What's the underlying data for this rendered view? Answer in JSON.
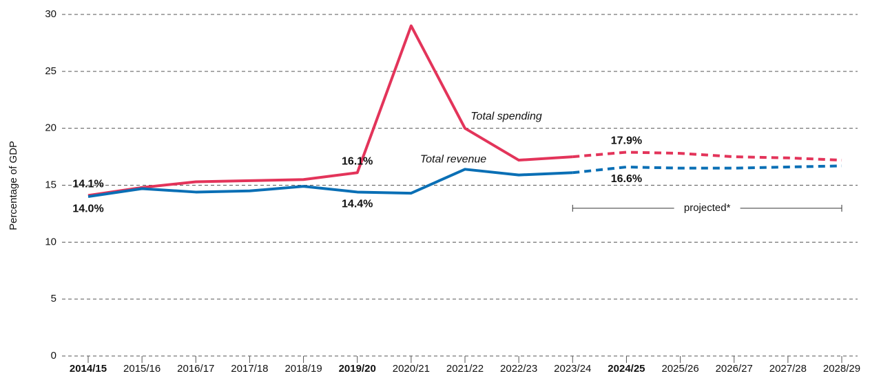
{
  "chart_data": {
    "type": "line",
    "y_label": "Percentage of GDP",
    "categories": [
      "2014/15",
      "2015/16",
      "2016/17",
      "2017/18",
      "2018/19",
      "2019/20",
      "2020/21",
      "2021/22",
      "2022/23",
      "2023/24",
      "2024/25",
      "2025/26",
      "2026/27",
      "2027/28",
      "2028/29"
    ],
    "highlight_categories": [
      "2014/15",
      "2019/20",
      "2024/25"
    ],
    "series": [
      {
        "name": "Total spending",
        "color": "#e3345a",
        "values": [
          14.1,
          14.8,
          15.3,
          15.4,
          15.5,
          16.1,
          29.0,
          20.0,
          17.2,
          17.5,
          17.9,
          17.8,
          17.5,
          17.4,
          17.2
        ],
        "value_labels": [
          "14.1%",
          null,
          null,
          null,
          null,
          "16.1%",
          null,
          null,
          null,
          null,
          "17.9%",
          null,
          null,
          null,
          null
        ]
      },
      {
        "name": "Total revenue",
        "color": "#0a6fb5",
        "values": [
          14.0,
          14.7,
          14.4,
          14.5,
          14.9,
          14.4,
          14.3,
          16.4,
          15.9,
          16.1,
          16.6,
          16.5,
          16.5,
          16.6,
          16.7
        ],
        "value_labels": [
          "14.0%",
          null,
          null,
          null,
          null,
          "14.4%",
          null,
          null,
          null,
          null,
          "16.6%",
          null,
          null,
          null,
          null
        ]
      }
    ],
    "projection": {
      "label": "projected*",
      "from": "2023/24",
      "to": "2028/29"
    },
    "ylim": [
      0,
      30
    ],
    "yticks": [
      0,
      5,
      10,
      15,
      20,
      25,
      30
    ],
    "grid": true
  }
}
